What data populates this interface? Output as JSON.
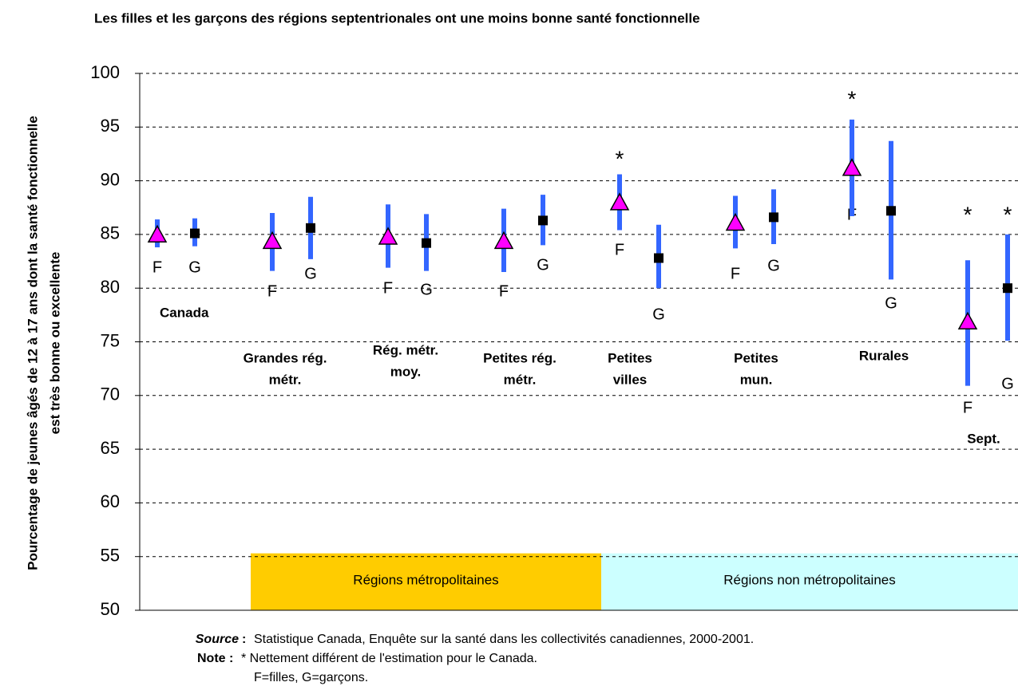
{
  "chart_data": {
    "type": "errorbar",
    "title": "Les filles et les garçons des régions septentrionales ont une moins bonne santé fonctionnelle",
    "y_label": [
      "Pourcentage de jeunes âgés de 12 à 17 ans dont la santé fonctionnelle",
      "est très bonne ou excellente"
    ],
    "categories": [
      "F",
      "G",
      null,
      "F",
      "G",
      null,
      "F",
      "G",
      null,
      "F",
      "G",
      null,
      "F",
      "G",
      null,
      "F",
      "G",
      null,
      "F",
      "G",
      null,
      "F",
      "G"
    ],
    "series": [
      {
        "marker": "triangle",
        "color": "#ff00ff",
        "bar_color": "#3366ff",
        "values": [
          84.9,
          null,
          null,
          84.3,
          null,
          null,
          84.7,
          null,
          null,
          84.3,
          null,
          null,
          87.9,
          null,
          null,
          86.0,
          null,
          null,
          91.1,
          null,
          null,
          76.8,
          null
        ],
        "lower": [
          83.8,
          null,
          null,
          81.6,
          null,
          null,
          81.9,
          null,
          null,
          81.5,
          null,
          null,
          85.4,
          null,
          null,
          83.7,
          null,
          null,
          86.7,
          null,
          null,
          70.9,
          null
        ],
        "upper": [
          86.4,
          null,
          null,
          87.0,
          null,
          null,
          87.8,
          null,
          null,
          87.4,
          null,
          null,
          90.6,
          null,
          null,
          88.6,
          null,
          null,
          95.7,
          null,
          null,
          82.6,
          null
        ],
        "annotations": [
          null,
          null,
          null,
          null,
          null,
          null,
          null,
          null,
          null,
          null,
          null,
          null,
          "*",
          null,
          null,
          null,
          null,
          null,
          "*",
          null,
          null,
          "*",
          null
        ]
      },
      {
        "marker": "square",
        "color": "#000000",
        "bar_color": "#3366ff",
        "values": [
          null,
          85.1,
          null,
          null,
          85.6,
          null,
          null,
          84.2,
          null,
          null,
          86.3,
          null,
          null,
          82.8,
          null,
          null,
          86.6,
          null,
          null,
          87.2,
          null,
          null,
          80.0
        ],
        "lower": [
          null,
          83.9,
          null,
          null,
          82.7,
          null,
          null,
          81.6,
          null,
          null,
          84.0,
          null,
          null,
          80.0,
          null,
          null,
          84.1,
          null,
          null,
          80.8,
          null,
          null,
          75.1
        ],
        "upper": [
          null,
          86.5,
          null,
          null,
          88.5,
          null,
          null,
          86.9,
          null,
          null,
          88.7,
          null,
          null,
          85.9,
          null,
          null,
          89.2,
          null,
          null,
          93.7,
          null,
          null,
          85.0
        ],
        "annotations": [
          null,
          null,
          null,
          null,
          null,
          null,
          null,
          null,
          null,
          null,
          null,
          null,
          null,
          null,
          null,
          null,
          null,
          null,
          null,
          null,
          null,
          null,
          "*"
        ]
      }
    ],
    "groups": [
      [
        "Canada"
      ],
      [
        "Grandes rég.",
        "métr."
      ],
      [
        "Rég. métr.",
        "moy."
      ],
      [
        "Petites rég.",
        "métr."
      ],
      [
        "Petites",
        "villes"
      ],
      [
        "Petites",
        "mun."
      ],
      [
        "Rurales"
      ],
      [
        "Sept."
      ]
    ],
    "regions": [
      {
        "label": "Régions métropolitaines",
        "color": "#ffcc00"
      },
      {
        "label": "Régions non métropolitaines",
        "color": "#ccffff"
      }
    ],
    "ylim": [
      50,
      100
    ],
    "yticks": [
      50,
      55,
      60,
      65,
      70,
      75,
      80,
      85,
      90,
      95,
      100
    ],
    "grid": true,
    "source": {
      "label": "Source",
      "text": "Statistique Canada, Enquête sur la santé dans les collectivités canadiennes, 2000-2001."
    },
    "note": {
      "label": "Note :",
      "lines": [
        "* Nettement différent de l'estimation pour le Canada.",
        "F=filles, G=garçons."
      ]
    }
  }
}
